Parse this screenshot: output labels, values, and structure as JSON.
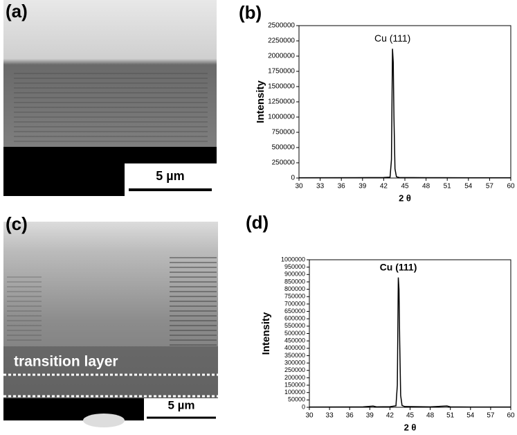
{
  "images": [
    {
      "label": "(a)",
      "scale_bar": "5 µm"
    },
    {
      "label": "(c)",
      "scale_bar": "5 µm",
      "annotation": "transition layer"
    }
  ],
  "chart_data": [
    {
      "type": "line",
      "label": "(b)",
      "xlabel": "2 θ",
      "ylabel": "Intensity",
      "annotation": "Cu (111)",
      "color": "#000000",
      "x": [
        30,
        38,
        42,
        42.9,
        43.1,
        43.25,
        43.35,
        43.45,
        43.6,
        43.8,
        44.2,
        48,
        54,
        60
      ],
      "values": [
        5000,
        6000,
        8000,
        15000,
        300000,
        2120000,
        1900000,
        1000000,
        150000,
        20000,
        9000,
        6000,
        5000,
        5000
      ],
      "xlim": [
        30,
        60
      ],
      "xticks": [
        30,
        33,
        36,
        39,
        42,
        45,
        48,
        51,
        54,
        57,
        60
      ],
      "ylim": [
        0,
        2500000
      ],
      "yticks": [
        0,
        250000,
        500000,
        750000,
        1000000,
        1250000,
        1500000,
        1750000,
        2000000,
        2250000,
        2500000
      ]
    },
    {
      "type": "line",
      "label": "(d)",
      "xlabel": "2 θ",
      "ylabel": "Intensity",
      "annotation": "Cu (111)",
      "color": "#000000",
      "x": [
        30,
        38,
        39.5,
        40,
        42,
        42.9,
        43.1,
        43.25,
        43.35,
        43.45,
        43.6,
        43.8,
        44.2,
        48,
        50.5,
        51,
        54,
        60
      ],
      "values": [
        2000,
        3000,
        8000,
        3000,
        4000,
        10000,
        150000,
        880000,
        800000,
        450000,
        80000,
        12000,
        5000,
        3000,
        9000,
        3000,
        2000,
        2000
      ],
      "xlim": [
        30,
        60
      ],
      "xticks": [
        30,
        33,
        36,
        39,
        42,
        45,
        48,
        51,
        54,
        57,
        60
      ],
      "ylim": [
        0,
        1000000
      ],
      "yticks": [
        0,
        50000,
        100000,
        150000,
        200000,
        250000,
        300000,
        350000,
        400000,
        450000,
        500000,
        550000,
        600000,
        650000,
        700000,
        750000,
        800000,
        850000,
        900000,
        950000,
        1000000
      ]
    }
  ]
}
